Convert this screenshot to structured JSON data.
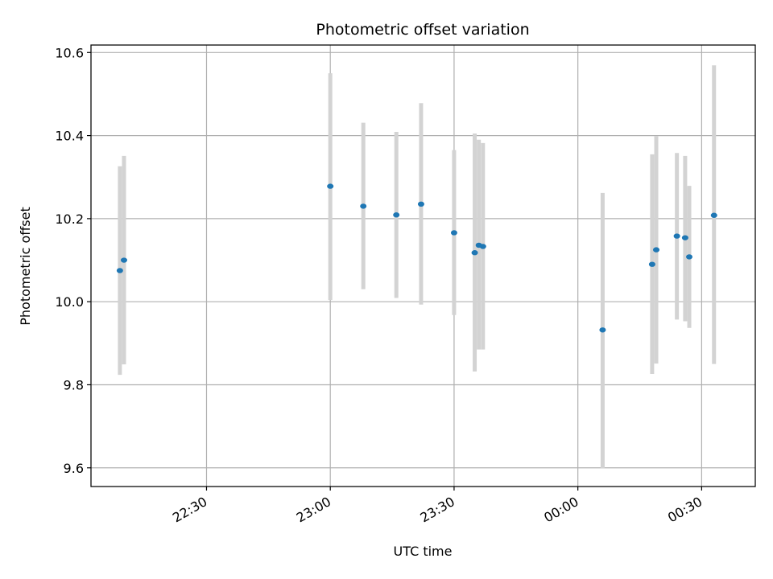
{
  "chart_data": {
    "type": "scatter",
    "title": "Photometric offset variation",
    "xlabel": "UTC time",
    "ylabel": "Photometric offset",
    "xlim": [
      "22:02",
      "00:43"
    ],
    "ylim": [
      9.555,
      10.618
    ],
    "x_ticks": [
      "22:30",
      "23:00",
      "23:30",
      "00:00",
      "00:30"
    ],
    "y_ticks": [
      "9.6",
      "9.8",
      "10.0",
      "10.2",
      "10.4",
      "10.6"
    ],
    "grid": true,
    "colors": {
      "points": "#1f77b4",
      "error_bars": "#d3d3d3",
      "grid": "#b0b0b0"
    },
    "points": [
      {
        "x": "22:09",
        "y": 10.075,
        "low": 9.824,
        "high": 10.326
      },
      {
        "x": "22:10",
        "y": 10.1,
        "low": 9.849,
        "high": 10.351
      },
      {
        "x": "23:00",
        "y": 10.278,
        "low": 10.004,
        "high": 10.55
      },
      {
        "x": "23:08",
        "y": 10.23,
        "low": 10.03,
        "high": 10.431
      },
      {
        "x": "23:16",
        "y": 10.209,
        "low": 10.009,
        "high": 10.409
      },
      {
        "x": "23:22",
        "y": 10.235,
        "low": 9.993,
        "high": 10.478
      },
      {
        "x": "23:30",
        "y": 10.166,
        "low": 9.968,
        "high": 10.365
      },
      {
        "x": "23:35",
        "y": 10.118,
        "low": 9.832,
        "high": 10.405
      },
      {
        "x": "23:36",
        "y": 10.136,
        "low": 9.885,
        "high": 10.39
      },
      {
        "x": "23:37",
        "y": 10.133,
        "low": 9.885,
        "high": 10.382
      },
      {
        "x": "00:06",
        "y": 9.932,
        "low": 9.599,
        "high": 10.262
      },
      {
        "x": "00:18",
        "y": 10.09,
        "low": 9.826,
        "high": 10.355
      },
      {
        "x": "00:19",
        "y": 10.125,
        "low": 9.851,
        "high": 10.399
      },
      {
        "x": "00:24",
        "y": 10.158,
        "low": 9.957,
        "high": 10.358
      },
      {
        "x": "00:26",
        "y": 10.154,
        "low": 9.953,
        "high": 10.351
      },
      {
        "x": "00:27",
        "y": 10.108,
        "low": 9.937,
        "high": 10.279
      },
      {
        "x": "00:33",
        "y": 10.208,
        "low": 9.85,
        "high": 10.569
      }
    ]
  }
}
